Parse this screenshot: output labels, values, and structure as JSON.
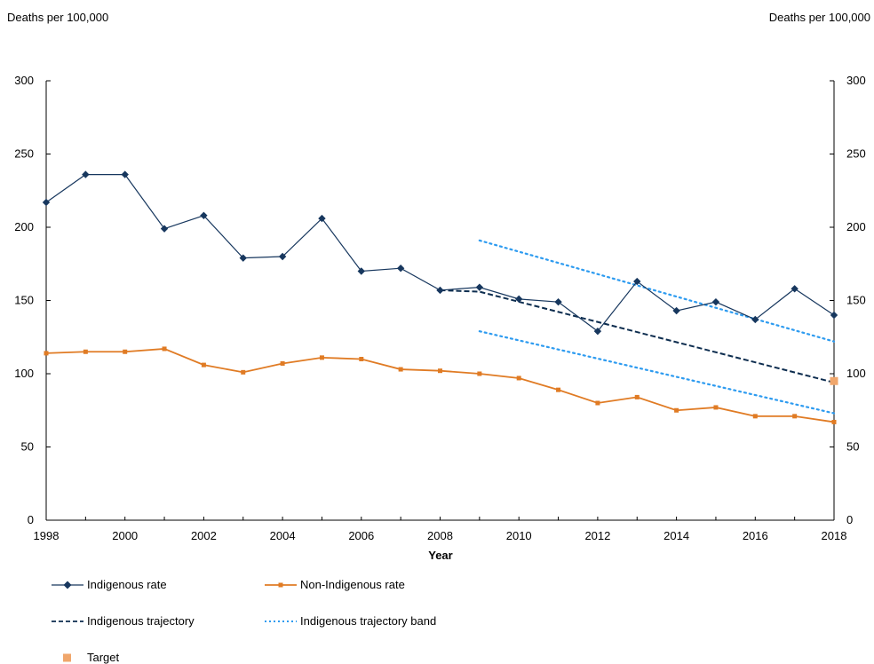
{
  "chart_data": {
    "type": "line",
    "title": "",
    "ylabel_left": "Deaths per 100,000",
    "ylabel_right": "Deaths per 100,000",
    "xlabel": "Year",
    "xlim": [
      1998,
      2018
    ],
    "ylim": [
      0,
      300
    ],
    "x_ticks": [
      "1998",
      "2000",
      "2002",
      "2004",
      "2006",
      "2008",
      "2010",
      "2012",
      "2014",
      "2016",
      "2018"
    ],
    "y_ticks": [
      "0",
      "50",
      "100",
      "150",
      "200",
      "250",
      "300"
    ],
    "grid": false,
    "legend_position": "bottom",
    "series": [
      {
        "name": "Indigenous rate",
        "style": "line-diamond",
        "color": "#17375e",
        "x": [
          1998,
          1999,
          2000,
          2001,
          2002,
          2003,
          2004,
          2005,
          2006,
          2007,
          2008,
          2009,
          2010,
          2011,
          2012,
          2013,
          2014,
          2015,
          2016,
          2017,
          2018
        ],
        "y": [
          217,
          236,
          236,
          199,
          208,
          179,
          180,
          206,
          170,
          172,
          157,
          159,
          151,
          149,
          129,
          163,
          143,
          149,
          137,
          158,
          140
        ]
      },
      {
        "name": "Non-Indigenous rate",
        "style": "line-square",
        "color": "#e07b24",
        "x": [
          1998,
          1999,
          2000,
          2001,
          2002,
          2003,
          2004,
          2005,
          2006,
          2007,
          2008,
          2009,
          2010,
          2011,
          2012,
          2013,
          2014,
          2015,
          2016,
          2017,
          2018
        ],
        "y": [
          114,
          115,
          115,
          117,
          106,
          101,
          107,
          111,
          110,
          103,
          102,
          100,
          97,
          89,
          80,
          84,
          75,
          77,
          71,
          71,
          67
        ]
      },
      {
        "name": "Indigenous trajectory",
        "style": "dashed",
        "color": "#0d2d4f",
        "x": [
          2008,
          2009,
          2018
        ],
        "y": [
          157,
          156,
          94
        ]
      },
      {
        "name": "Indigenous trajectory band",
        "style": "dotted",
        "color": "#2d9bf0",
        "segments": [
          {
            "x": [
              2009,
              2018
            ],
            "y": [
              191,
              122
            ]
          },
          {
            "x": [
              2009,
              2018
            ],
            "y": [
              129,
              73
            ]
          }
        ]
      },
      {
        "name": "Target",
        "style": "marker-square",
        "color": "#f0a66b",
        "x": [
          2018
        ],
        "y": [
          95
        ]
      }
    ]
  }
}
